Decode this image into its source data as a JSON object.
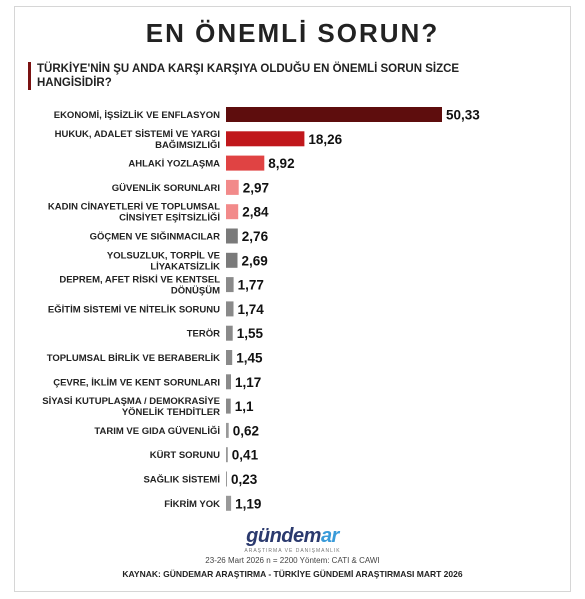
{
  "title": "EN ÖNEMLİ SORUN?",
  "subtitle": "TÜRKİYE'NİN ŞU ANDA KARŞI KARŞIYA OLDUĞU EN ÖNEMLİ SORUN SİZCE HANGİSİDİR?",
  "logo": {
    "part1": "gündem",
    "part2": "ar",
    "tagline": "ARAŞTIRMA VE DANIŞMANLIK"
  },
  "methodology": "23-26 Mart 2026 n = 2200 Yöntem: CATI & CAWI",
  "source": "KAYNAK: GÜNDEMAR ARAŞTIRMA - TÜRKİYE GÜNDEMİ ARAŞTIRMASI MART 2026",
  "chart_data": {
    "type": "bar",
    "orientation": "horizontal",
    "title": "EN ÖNEMLİ SORUN?",
    "xlim": [
      0,
      50.33
    ],
    "grid": false,
    "categories": [
      [
        "EKONOMİ, İŞSİZLİK VE ENFLASYON"
      ],
      [
        "HUKUK, ADALET SİSTEMİ VE YARGI",
        "BAĞIMSIZLIĞI"
      ],
      [
        "AHLAKİ YOZLAŞMA"
      ],
      [
        "GÜVENLİK SORUNLARI"
      ],
      [
        "KADIN CİNAYETLERİ VE TOPLUMSAL",
        "CİNSİYET EŞİTSİZLİĞİ"
      ],
      [
        "GÖÇMEN VE SIĞINMACILAR"
      ],
      [
        "YOLSUZLUK, TORPİL VE",
        "LİYAKATSİZLİK"
      ],
      [
        "DEPREM, AFET RİSKİ VE KENTSEL",
        "DÖNÜŞÜM"
      ],
      [
        "EĞİTİM SİSTEMİ VE NİTELİK SORUNU"
      ],
      [
        "TERÖR"
      ],
      [
        "TOPLUMSAL BİRLİK VE BERABERLİK"
      ],
      [
        "ÇEVRE, İKLİM VE KENT SORUNLARI"
      ],
      [
        "SİYASİ KUTUPLAŞMA / DEMOKRASİYE",
        "YÖNELİK TEHDİTLER"
      ],
      [
        "TARIM VE GIDA GÜVENLİĞİ"
      ],
      [
        "KÜRT SORUNU"
      ],
      [
        "SAĞLIK SİSTEMİ"
      ],
      [
        "FİKRİM YOK"
      ]
    ],
    "values": [
      50.33,
      18.26,
      8.92,
      2.97,
      2.84,
      2.76,
      2.69,
      1.77,
      1.74,
      1.55,
      1.45,
      1.17,
      1.1,
      0.62,
      0.41,
      0.23,
      1.19
    ],
    "value_labels": [
      "50,33",
      "18,26",
      "8,92",
      "2,97",
      "2,84",
      "2,76",
      "2,69",
      "1,77",
      "1,74",
      "1,55",
      "1,45",
      "1,17",
      "1,1",
      "0,62",
      "0,41",
      "0,23",
      "1,19"
    ],
    "colors": [
      "#5e0d0d",
      "#c0171b",
      "#e04343",
      "#f28a8a",
      "#f28a8a",
      "#7a7a7a",
      "#7a7a7a",
      "#8a8a8a",
      "#8a8a8a",
      "#8a8a8a",
      "#8a8a8a",
      "#8a8a8a",
      "#8a8a8a",
      "#999999",
      "#999999",
      "#999999",
      "#999999"
    ]
  }
}
